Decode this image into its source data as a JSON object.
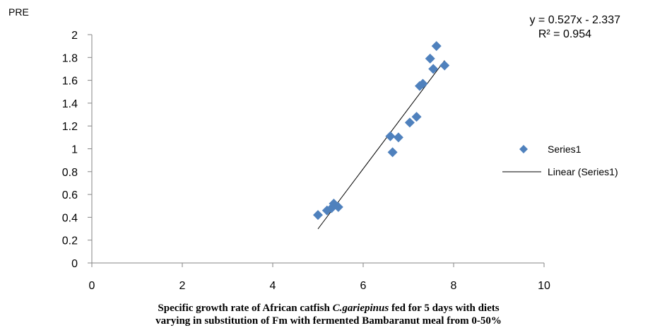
{
  "chart_data": {
    "type": "scatter",
    "ylabel": "PRE",
    "xlabel_parts": {
      "before": "Specific growth rate of African catfish ",
      "italic": "C.gariepinus",
      "after": " fed for 5 days with diets",
      "line2": "varying in substitution of Fm with fermented Bambaranut meal from 0-50%"
    },
    "xlim": [
      0,
      10
    ],
    "ylim": [
      0,
      2
    ],
    "x_ticks": [
      "0",
      "2",
      "4",
      "6",
      "8",
      "10"
    ],
    "y_ticks": [
      "0",
      "0.2",
      "0.4",
      "0.6",
      "0.8",
      "1",
      "1.2",
      "1.4",
      "1.6",
      "1.8",
      "2"
    ],
    "grid": false,
    "legend_position": "right",
    "series": [
      {
        "name": "Series1",
        "color": "#4f81bd",
        "marker": "diamond",
        "points": [
          [
            5.0,
            0.42
          ],
          [
            5.2,
            0.46
          ],
          [
            5.3,
            0.48
          ],
          [
            5.35,
            0.52
          ],
          [
            5.45,
            0.49
          ],
          [
            6.6,
            1.11
          ],
          [
            6.65,
            0.97
          ],
          [
            6.78,
            1.1
          ],
          [
            7.03,
            1.23
          ],
          [
            7.18,
            1.28
          ],
          [
            7.25,
            1.55
          ],
          [
            7.32,
            1.57
          ],
          [
            7.48,
            1.79
          ],
          [
            7.55,
            1.7
          ],
          [
            7.62,
            1.9
          ],
          [
            7.8,
            1.73
          ]
        ]
      }
    ],
    "trendline": {
      "name": "Linear (Series1)",
      "slope": 0.527,
      "intercept": -2.337,
      "x_range": [
        5.0,
        7.8
      ],
      "color": "#000000",
      "equation": "y = 0.527x - 2.337",
      "r2": "R² = 0.954"
    }
  }
}
